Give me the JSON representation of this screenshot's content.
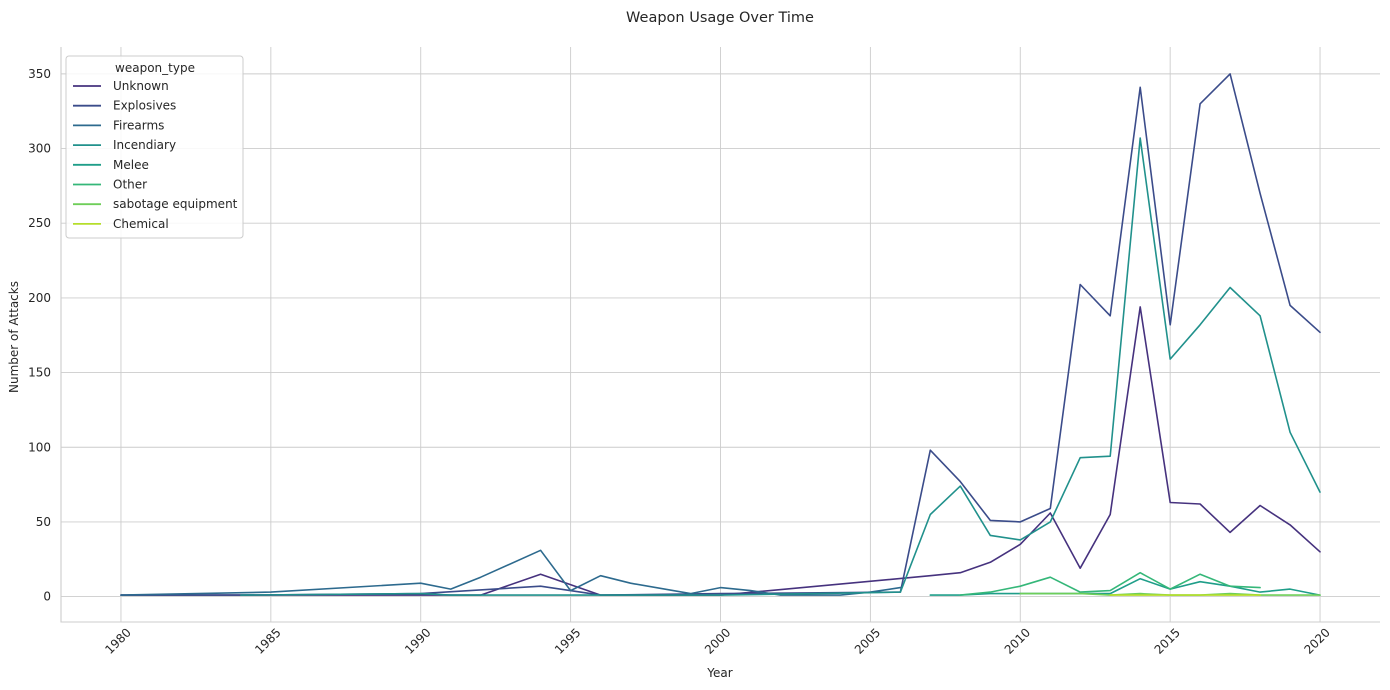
{
  "chart_data": {
    "type": "line",
    "title": "Weapon Usage Over Time",
    "xlabel": "Year",
    "ylabel": "Number of Attacks",
    "xlim": [
      1978,
      2022
    ],
    "ylim": [
      -17,
      368
    ],
    "xticks": [
      "1980",
      "1985",
      "1990",
      "1995",
      "2000",
      "2005",
      "2010",
      "2015",
      "2020"
    ],
    "yticks": [
      "0",
      "50",
      "100",
      "150",
      "200",
      "250",
      "300",
      "350"
    ],
    "grid": true,
    "legend": {
      "title": "weapon_type",
      "placement": "top-left"
    },
    "series": [
      {
        "name": "Unknown",
        "color": "#46327e",
        "x": [
          1980,
          1984,
          1990,
          1992,
          1994,
          1996,
          2000,
          2007,
          2008,
          2009,
          2010,
          2011,
          2012,
          2013,
          2014,
          2015,
          2016,
          2017,
          2018,
          2019,
          2020
        ],
        "y": [
          1,
          1,
          1,
          1,
          15,
          1,
          1,
          14,
          16,
          23,
          35,
          56,
          19,
          55,
          194,
          63,
          62,
          43,
          61,
          48,
          30
        ]
      },
      {
        "name": "Explosives",
        "color": "#3b4c8a",
        "x": [
          1980,
          1984,
          1990,
          1994,
          1996,
          2000,
          2006,
          2007,
          2008,
          2009,
          2010,
          2011,
          2012,
          2013,
          2014,
          2015,
          2016,
          2017,
          2018,
          2019,
          2020
        ],
        "y": [
          1,
          1,
          2,
          7,
          1,
          2,
          3,
          98,
          77,
          51,
          50,
          59,
          209,
          188,
          341,
          182,
          330,
          350,
          270,
          195,
          177
        ]
      },
      {
        "name": "Firearms",
        "color": "#2d6a8e",
        "x": [
          1980,
          1985,
          1990,
          1991,
          1992,
          1994,
          1995,
          1996,
          1997,
          1999,
          2000,
          2001,
          2002,
          2004,
          2005,
          2006
        ],
        "y": [
          1,
          3,
          9,
          5,
          13,
          31,
          4,
          14,
          9,
          2,
          6,
          4,
          1,
          1,
          3,
          6
        ]
      },
      {
        "name": "Incendiary",
        "color": "#21918c",
        "x": [
          1984,
          1990,
          1991,
          2000,
          2006,
          2007,
          2008,
          2009,
          2010,
          2011,
          2012,
          2013,
          2014,
          2015,
          2016,
          2017,
          2018,
          2019,
          2020
        ],
        "y": [
          1,
          2,
          1,
          1,
          3,
          55,
          74,
          41,
          38,
          50,
          93,
          94,
          307,
          159,
          182,
          207,
          188,
          110,
          70
        ]
      },
      {
        "name": "Melee",
        "color": "#1f9e89",
        "x": [
          2007,
          2008,
          2009,
          2010,
          2011,
          2012,
          2013,
          2014,
          2015,
          2016,
          2017,
          2018,
          2019,
          2020
        ],
        "y": [
          1,
          1,
          2,
          2,
          2,
          2,
          2,
          12,
          5,
          10,
          7,
          3,
          5,
          1
        ]
      },
      {
        "name": "Other",
        "color": "#35b779",
        "x": [
          2008,
          2009,
          2010,
          2011,
          2012,
          2013,
          2014,
          2015,
          2016,
          2017,
          2018
        ],
        "y": [
          1,
          3,
          7,
          13,
          3,
          4,
          16,
          5,
          15,
          7,
          6
        ]
      },
      {
        "name": "sabotage equipment",
        "color": "#6ece58",
        "x": [
          2010,
          2011,
          2012,
          2013,
          2014,
          2015,
          2016,
          2017,
          2018,
          2019,
          2020
        ],
        "y": [
          2,
          2,
          2,
          1,
          2,
          1,
          1,
          2,
          1,
          1,
          1
        ]
      },
      {
        "name": "Chemical",
        "color": "#b5de2b",
        "x": [
          2013,
          2014,
          2018
        ],
        "y": [
          1,
          1,
          1
        ]
      }
    ]
  }
}
